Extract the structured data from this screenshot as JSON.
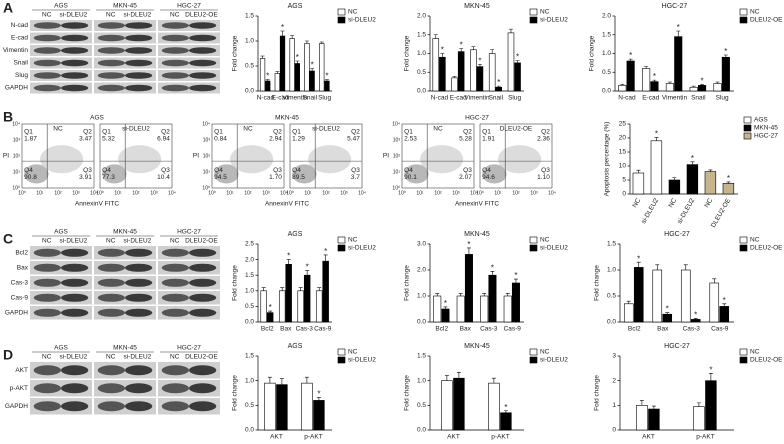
{
  "panels": [
    "A",
    "B",
    "C",
    "D"
  ],
  "blots": [
    {
      "groups": [
        {
          "name": "AGS",
          "lanes": [
            "NC",
            "si-DLEU2"
          ]
        },
        {
          "name": "MKN-45",
          "lanes": [
            "NC",
            "si-DLEU2"
          ]
        },
        {
          "name": "HGC-27",
          "lanes": [
            "NC",
            "DLEU2-OE"
          ]
        }
      ],
      "proteins": [
        "N-cad",
        "E-cad",
        "Vimentin",
        "Snail",
        "Slug",
        "GAPDH"
      ]
    },
    {
      "groups": [
        {
          "name": "AGS",
          "lanes": [
            "NC",
            "si-DLEU2"
          ]
        },
        {
          "name": "MKN-45",
          "lanes": [
            "NC",
            "si-DLEU2"
          ]
        },
        {
          "name": "HGC-27",
          "lanes": [
            "NC",
            "DLEU2-OE"
          ]
        }
      ],
      "proteins": [
        "Bcl2",
        "Bax",
        "Cas-3",
        "Cas-9",
        "GAPDH"
      ]
    },
    {
      "groups": [
        {
          "name": "AGS",
          "lanes": [
            "NC",
            "si-DLEU2"
          ]
        },
        {
          "name": "MKN-45",
          "lanes": [
            "NC",
            "si-DLEU2"
          ]
        },
        {
          "name": "HGC-27",
          "lanes": [
            "NC",
            "DLEU2-OE"
          ]
        }
      ],
      "proteins": [
        "AKT",
        "p-AKT",
        "GAPDH"
      ]
    }
  ],
  "flow": {
    "x_label": "AnnexinV FITC",
    "y_label": "PI",
    "axis_ticks": [
      "10⁰",
      "10¹",
      "10²",
      "10³",
      "10⁴"
    ],
    "groups": [
      {
        "name": "AGS",
        "plots": [
          {
            "condition": "NC",
            "quadrants": [
              {
                "name": "Q1",
                "value": "1.87"
              },
              {
                "name": "Q2",
                "value": "3.47"
              },
              {
                "name": "Q3",
                "value": "3.91"
              },
              {
                "name": "Q4",
                "value": "90.8"
              }
            ]
          },
          {
            "condition": "si-DLEU2",
            "quadrants": [
              {
                "name": "Q1",
                "value": "5.32"
              },
              {
                "name": "Q2",
                "value": "6.94"
              },
              {
                "name": "Q3",
                "value": "10.4"
              },
              {
                "name": "Q4",
                "value": "77.3"
              }
            ]
          }
        ]
      },
      {
        "name": "MKN-45",
        "plots": [
          {
            "condition": "NC",
            "quadrants": [
              {
                "name": "Q1",
                "value": "0.84"
              },
              {
                "name": "Q2",
                "value": "2.94"
              },
              {
                "name": "Q3",
                "value": "1.70"
              },
              {
                "name": "Q4",
                "value": "94.5"
              }
            ]
          },
          {
            "condition": "si-DLEU2",
            "quadrants": [
              {
                "name": "Q1",
                "value": "1.29"
              },
              {
                "name": "Q2",
                "value": "5.47"
              },
              {
                "name": "Q3",
                "value": "3.7"
              },
              {
                "name": "Q4",
                "value": "89.5"
              }
            ]
          }
        ]
      },
      {
        "name": "HGC-27",
        "plots": [
          {
            "condition": "NC",
            "quadrants": [
              {
                "name": "Q1",
                "value": "2.53"
              },
              {
                "name": "Q2",
                "value": "5.28"
              },
              {
                "name": "Q3",
                "value": "2.07"
              },
              {
                "name": "Q4",
                "value": "90.1"
              }
            ]
          },
          {
            "condition": "DLEU2-OE",
            "quadrants": [
              {
                "name": "Q1",
                "value": "1.91"
              },
              {
                "name": "Q2",
                "value": "2.36"
              },
              {
                "name": "Q3",
                "value": "1.10"
              },
              {
                "name": "Q4",
                "value": "94.6"
              }
            ]
          }
        ]
      }
    ]
  },
  "chart_data": [
    {
      "type": "bar",
      "title": "AGS",
      "y_label": "Fold change",
      "categories": [
        "N-cad",
        "E-cad",
        "Vimentin",
        "Snail",
        "Slug"
      ],
      "ylim": [
        0,
        1.5
      ],
      "yticks": [
        {
          "value": 0,
          "label": "0.0"
        },
        {
          "value": 0.5,
          "label": "0.5"
        },
        {
          "value": 1,
          "label": "1.0"
        },
        {
          "value": 1.5,
          "label": "1.5"
        }
      ],
      "series": [
        {
          "name": "NC",
          "color": "#ffffff",
          "values": [
            0.65,
            0.35,
            1.05,
            0.95,
            0.95
          ],
          "errors": [
            0.05,
            0.04,
            0.06,
            0.05,
            0.03
          ],
          "significance": [
            null,
            null,
            null,
            null,
            null
          ]
        },
        {
          "name": "si-DLEU2",
          "color": "#000000",
          "values": [
            0.2,
            1.1,
            0.55,
            0.4,
            0.2
          ],
          "errors": [
            0.03,
            0.1,
            0.05,
            0.05,
            0.03
          ],
          "significance": [
            "*",
            "*",
            "*",
            "*",
            "*"
          ]
        }
      ]
    },
    {
      "type": "bar",
      "title": "MKN-45",
      "y_label": "Fold change",
      "categories": [
        "N-cad",
        "E-cad",
        "Vimentin",
        "Snail",
        "Slug"
      ],
      "ylim": [
        0,
        2
      ],
      "yticks": [
        {
          "value": 0,
          "label": "0.0"
        },
        {
          "value": 0.5,
          "label": "0.5"
        },
        {
          "value": 1,
          "label": "1.0"
        },
        {
          "value": 1.5,
          "label": "1.5"
        },
        {
          "value": 2,
          "label": "2.0"
        }
      ],
      "series": [
        {
          "name": "NC",
          "color": "#ffffff",
          "values": [
            1.4,
            0.35,
            1.1,
            1.0,
            1.55
          ],
          "errors": [
            0.1,
            0.04,
            0.08,
            0.1,
            0.1
          ],
          "significance": [
            null,
            null,
            null,
            null,
            null
          ]
        },
        {
          "name": "si-DLEU2",
          "color": "#000000",
          "values": [
            0.9,
            1.05,
            0.65,
            0.1,
            0.75
          ],
          "errors": [
            0.1,
            0.08,
            0.06,
            0.03,
            0.06
          ],
          "significance": [
            "*",
            "*",
            "*",
            "*",
            "*"
          ]
        }
      ]
    },
    {
      "type": "bar",
      "title": "HGC-27",
      "y_label": "Fold change",
      "categories": [
        "N-cad",
        "E-cad",
        "Vimentin",
        "Snail",
        "Slug"
      ],
      "ylim": [
        0,
        2
      ],
      "yticks": [
        {
          "value": 0,
          "label": "0.0"
        },
        {
          "value": 0.5,
          "label": "0.5"
        },
        {
          "value": 1,
          "label": "1.0"
        },
        {
          "value": 1.5,
          "label": "1.5"
        },
        {
          "value": 2,
          "label": "2.0"
        }
      ],
      "series": [
        {
          "name": "NC",
          "color": "#ffffff",
          "values": [
            0.15,
            0.6,
            0.2,
            0.1,
            0.2
          ],
          "errors": [
            0.03,
            0.05,
            0.04,
            0.03,
            0.04
          ],
          "significance": [
            null,
            null,
            null,
            null,
            null
          ]
        },
        {
          "name": "DLEU2-OE",
          "color": "#000000",
          "values": [
            0.8,
            0.25,
            1.45,
            0.15,
            0.9
          ],
          "errors": [
            0.05,
            0.04,
            0.15,
            0.03,
            0.06
          ],
          "significance": [
            "*",
            "*",
            "*",
            "*",
            "*"
          ]
        }
      ]
    },
    {
      "type": "bar",
      "y_label": "Apoptosis percentage (%)",
      "categories": [
        "NC",
        "si-DLEU2",
        "NC",
        "si-DLEU2",
        "NC",
        "DLEU2-OE"
      ],
      "ylim": [
        0,
        25
      ],
      "yticks": [
        0,
        5,
        10,
        15,
        20,
        25
      ],
      "series": [
        {
          "name": "AGS",
          "color": "#ffffff",
          "values": [
            7.5,
            19,
            null,
            null,
            null,
            null
          ],
          "errors": [
            1,
            1.2,
            null,
            null,
            null,
            null
          ],
          "significance": [
            null,
            "*",
            null,
            null,
            null,
            null
          ]
        },
        {
          "name": "MKN-45",
          "color": "#000000",
          "values": [
            null,
            null,
            5,
            10.5,
            null,
            null
          ],
          "errors": [
            null,
            null,
            0.8,
            1,
            null,
            null
          ],
          "significance": [
            null,
            null,
            null,
            "*",
            null,
            null
          ]
        },
        {
          "name": "HGC-27",
          "color": "#c8b48c",
          "values": [
            null,
            null,
            null,
            null,
            8,
            3.8
          ],
          "errors": [
            null,
            null,
            null,
            null,
            0.6,
            0.5
          ],
          "significance": [
            null,
            null,
            null,
            null,
            null,
            "*"
          ]
        }
      ]
    },
    {
      "type": "bar",
      "title": "AGS",
      "y_label": "Fold change",
      "categories": [
        "Bcl2",
        "Bax",
        "Cas-3",
        "Cas-9"
      ],
      "ylim": [
        0,
        2.5
      ],
      "yticks": [
        {
          "value": 0,
          "label": "0.0"
        },
        {
          "value": 0.5,
          "label": "0.5"
        },
        {
          "value": 1,
          "label": "1.0"
        },
        {
          "value": 1.5,
          "label": "1.5"
        },
        {
          "value": 2,
          "label": "2.0"
        },
        {
          "value": 2.5,
          "label": "2.5"
        }
      ],
      "series": [
        {
          "name": "NC",
          "color": "#ffffff",
          "values": [
            1.0,
            1.0,
            1.0,
            1.0
          ],
          "errors": [
            0.1,
            0.1,
            0.1,
            0.1
          ],
          "significance": [
            null,
            null,
            null,
            null
          ]
        },
        {
          "name": "si-DLEU2",
          "color": "#000000",
          "values": [
            0.3,
            1.85,
            1.5,
            1.95
          ],
          "errors": [
            0.05,
            0.15,
            0.15,
            0.2
          ],
          "significance": [
            "*",
            "*",
            "*",
            "*"
          ]
        }
      ]
    },
    {
      "type": "bar",
      "title": "MKN-45",
      "y_label": "Fold change",
      "categories": [
        "Bcl2",
        "Bax",
        "Cas-3",
        "Cas-9"
      ],
      "ylim": [
        0,
        3
      ],
      "yticks": [
        {
          "value": 0,
          "label": "0.0"
        },
        {
          "value": 1,
          "label": "1.0"
        },
        {
          "value": 2,
          "label": "2.0"
        },
        {
          "value": 3,
          "label": "3.0"
        }
      ],
      "series": [
        {
          "name": "NC",
          "color": "#ffffff",
          "values": [
            1.0,
            1.0,
            1.0,
            1.0
          ],
          "errors": [
            0.1,
            0.1,
            0.1,
            0.1
          ],
          "significance": [
            null,
            null,
            null,
            null
          ]
        },
        {
          "name": "si-DLEU2",
          "color": "#000000",
          "values": [
            0.5,
            2.6,
            1.8,
            1.5
          ],
          "errors": [
            0.08,
            0.25,
            0.15,
            0.15
          ],
          "significance": [
            "*",
            "*",
            "*",
            "*"
          ]
        }
      ]
    },
    {
      "type": "bar",
      "title": "HGC-27",
      "y_label": "Fold change",
      "categories": [
        "Bcl2",
        "Bax",
        "Cas-3",
        "Cas-9"
      ],
      "ylim": [
        0,
        1.5
      ],
      "yticks": [
        {
          "value": 0,
          "label": "0.0"
        },
        {
          "value": 0.5,
          "label": "0.5"
        },
        {
          "value": 1,
          "label": "1.0"
        },
        {
          "value": 1.5,
          "label": "1.5"
        }
      ],
      "series": [
        {
          "name": "NC",
          "color": "#ffffff",
          "values": [
            0.35,
            1.0,
            1.0,
            0.75
          ],
          "errors": [
            0.05,
            0.1,
            0.1,
            0.08
          ],
          "significance": [
            null,
            null,
            null,
            null
          ]
        },
        {
          "name": "DLEU2-OE",
          "color": "#000000",
          "values": [
            1.05,
            0.15,
            0.05,
            0.3
          ],
          "errors": [
            0.1,
            0.03,
            0.02,
            0.05
          ],
          "significance": [
            "*",
            "*",
            "*",
            "*"
          ]
        }
      ]
    },
    {
      "type": "bar",
      "title": "AGS",
      "y_label": "Fold change",
      "categories": [
        "AKT",
        "p-AKT"
      ],
      "ylim": [
        0,
        1.5
      ],
      "yticks": [
        {
          "value": 0,
          "label": "0.0"
        },
        {
          "value": 0.5,
          "label": "0.5"
        },
        {
          "value": 1,
          "label": "1.0"
        },
        {
          "value": 1.5,
          "label": "1.5"
        }
      ],
      "series": [
        {
          "name": "NC",
          "color": "#ffffff",
          "values": [
            0.95,
            0.95
          ],
          "errors": [
            0.12,
            0.12
          ],
          "significance": [
            null,
            null
          ]
        },
        {
          "name": "si-DLEU2",
          "color": "#000000",
          "values": [
            0.92,
            0.6
          ],
          "errors": [
            0.12,
            0.06
          ],
          "significance": [
            null,
            "*"
          ]
        }
      ]
    },
    {
      "type": "bar",
      "title": "MKN-45",
      "y_label": "Fold change",
      "categories": [
        "AKT",
        "p-AKT"
      ],
      "ylim": [
        0,
        1.5
      ],
      "yticks": [
        {
          "value": 0,
          "label": "0.0"
        },
        {
          "value": 0.5,
          "label": "0.5"
        },
        {
          "value": 1,
          "label": "1.0"
        },
        {
          "value": 1.5,
          "label": "1.5"
        }
      ],
      "series": [
        {
          "name": "NC",
          "color": "#ffffff",
          "values": [
            1.0,
            0.95
          ],
          "errors": [
            0.1,
            0.1
          ],
          "significance": [
            null,
            null
          ]
        },
        {
          "name": "si-DLEU2",
          "color": "#000000",
          "values": [
            1.05,
            0.35
          ],
          "errors": [
            0.12,
            0.04
          ],
          "significance": [
            null,
            "*"
          ]
        }
      ]
    },
    {
      "type": "bar",
      "title": "HGC-27",
      "y_label": "Fold change",
      "categories": [
        "AKT",
        "p-AKT"
      ],
      "ylim": [
        0,
        3
      ],
      "yticks": [
        0,
        1,
        2,
        3
      ],
      "series": [
        {
          "name": "NC",
          "color": "#ffffff",
          "values": [
            1.0,
            0.95
          ],
          "errors": [
            0.2,
            0.15
          ],
          "significance": [
            null,
            null
          ]
        },
        {
          "name": "DLEU2-OE",
          "color": "#000000",
          "values": [
            0.85,
            2.0
          ],
          "errors": [
            0.12,
            0.3
          ],
          "significance": [
            null,
            "*"
          ]
        }
      ]
    }
  ]
}
